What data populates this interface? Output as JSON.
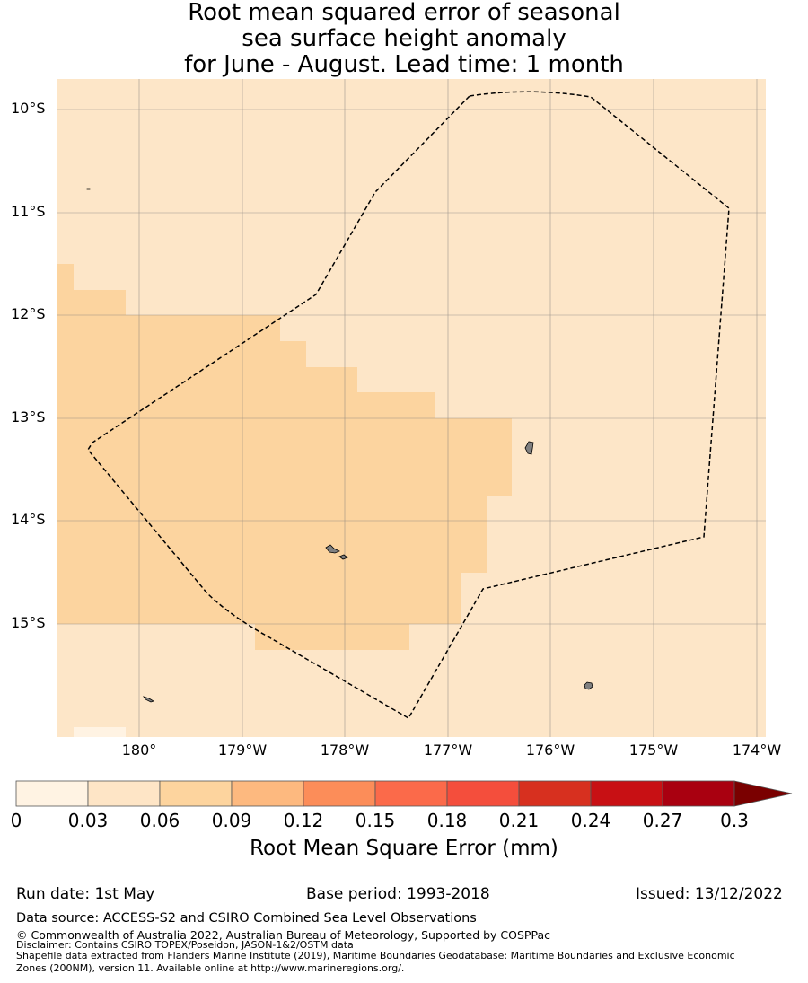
{
  "title": {
    "line1": "Root mean squared error of seasonal",
    "line2": "sea surface height anomaly",
    "line3": "for June - August. Lead time: 1 month"
  },
  "map": {
    "lat_labels": [
      "10°S",
      "11°S",
      "12°S",
      "13°S",
      "14°S",
      "15°S"
    ],
    "lon_labels": [
      "180°",
      "179°W",
      "178°W",
      "177°W",
      "176°W",
      "175°W",
      "174°W"
    ],
    "region_color_low": "#fde6c8",
    "region_color_mid": "#fcd49f",
    "boundary_style": "dashed",
    "islands": [
      "island-north-east",
      "island-central",
      "island-south-east",
      "island-west",
      "island-far-north-west"
    ]
  },
  "colorbar": {
    "ticks": [
      "0",
      "0.03",
      "0.06",
      "0.09",
      "0.12",
      "0.15",
      "0.18",
      "0.21",
      "0.24",
      "0.27",
      "0.3"
    ],
    "colors": [
      "#fff3e3",
      "#fee5c6",
      "#fdd49e",
      "#fdb97f",
      "#fc8d59",
      "#fb6a4a",
      "#f44e3c",
      "#d7301f",
      "#c81014",
      "#a90010"
    ],
    "extend_color": "#7a0000",
    "label": "Root Mean Square Error (mm)"
  },
  "meta": {
    "run_date": "Run date: 1st May",
    "base_period": "Base period: 1993-2018",
    "issued": "Issued: 13/12/2022"
  },
  "footer": {
    "data_source": "Data source: ACCESS-S2 and CSIRO Combined Sea Level Observations",
    "copyright": "© Commonwealth of Australia 2022, Australian Bureau of Meteorology, Supported by COSPPac",
    "disclaimer": "Disclaimer: Contains CSIRO TOPEX/Poseidon, JASON-1&2/OSTM data",
    "shapefile": "Shapefile data extracted from Flanders Marine Institute (2019), Maritime Boundaries Geodatabase: Maritime Boundaries and Exclusive Economic",
    "shapefile2": "Zones (200NM), version 11. Available online at http://www.marineregions.org/."
  }
}
